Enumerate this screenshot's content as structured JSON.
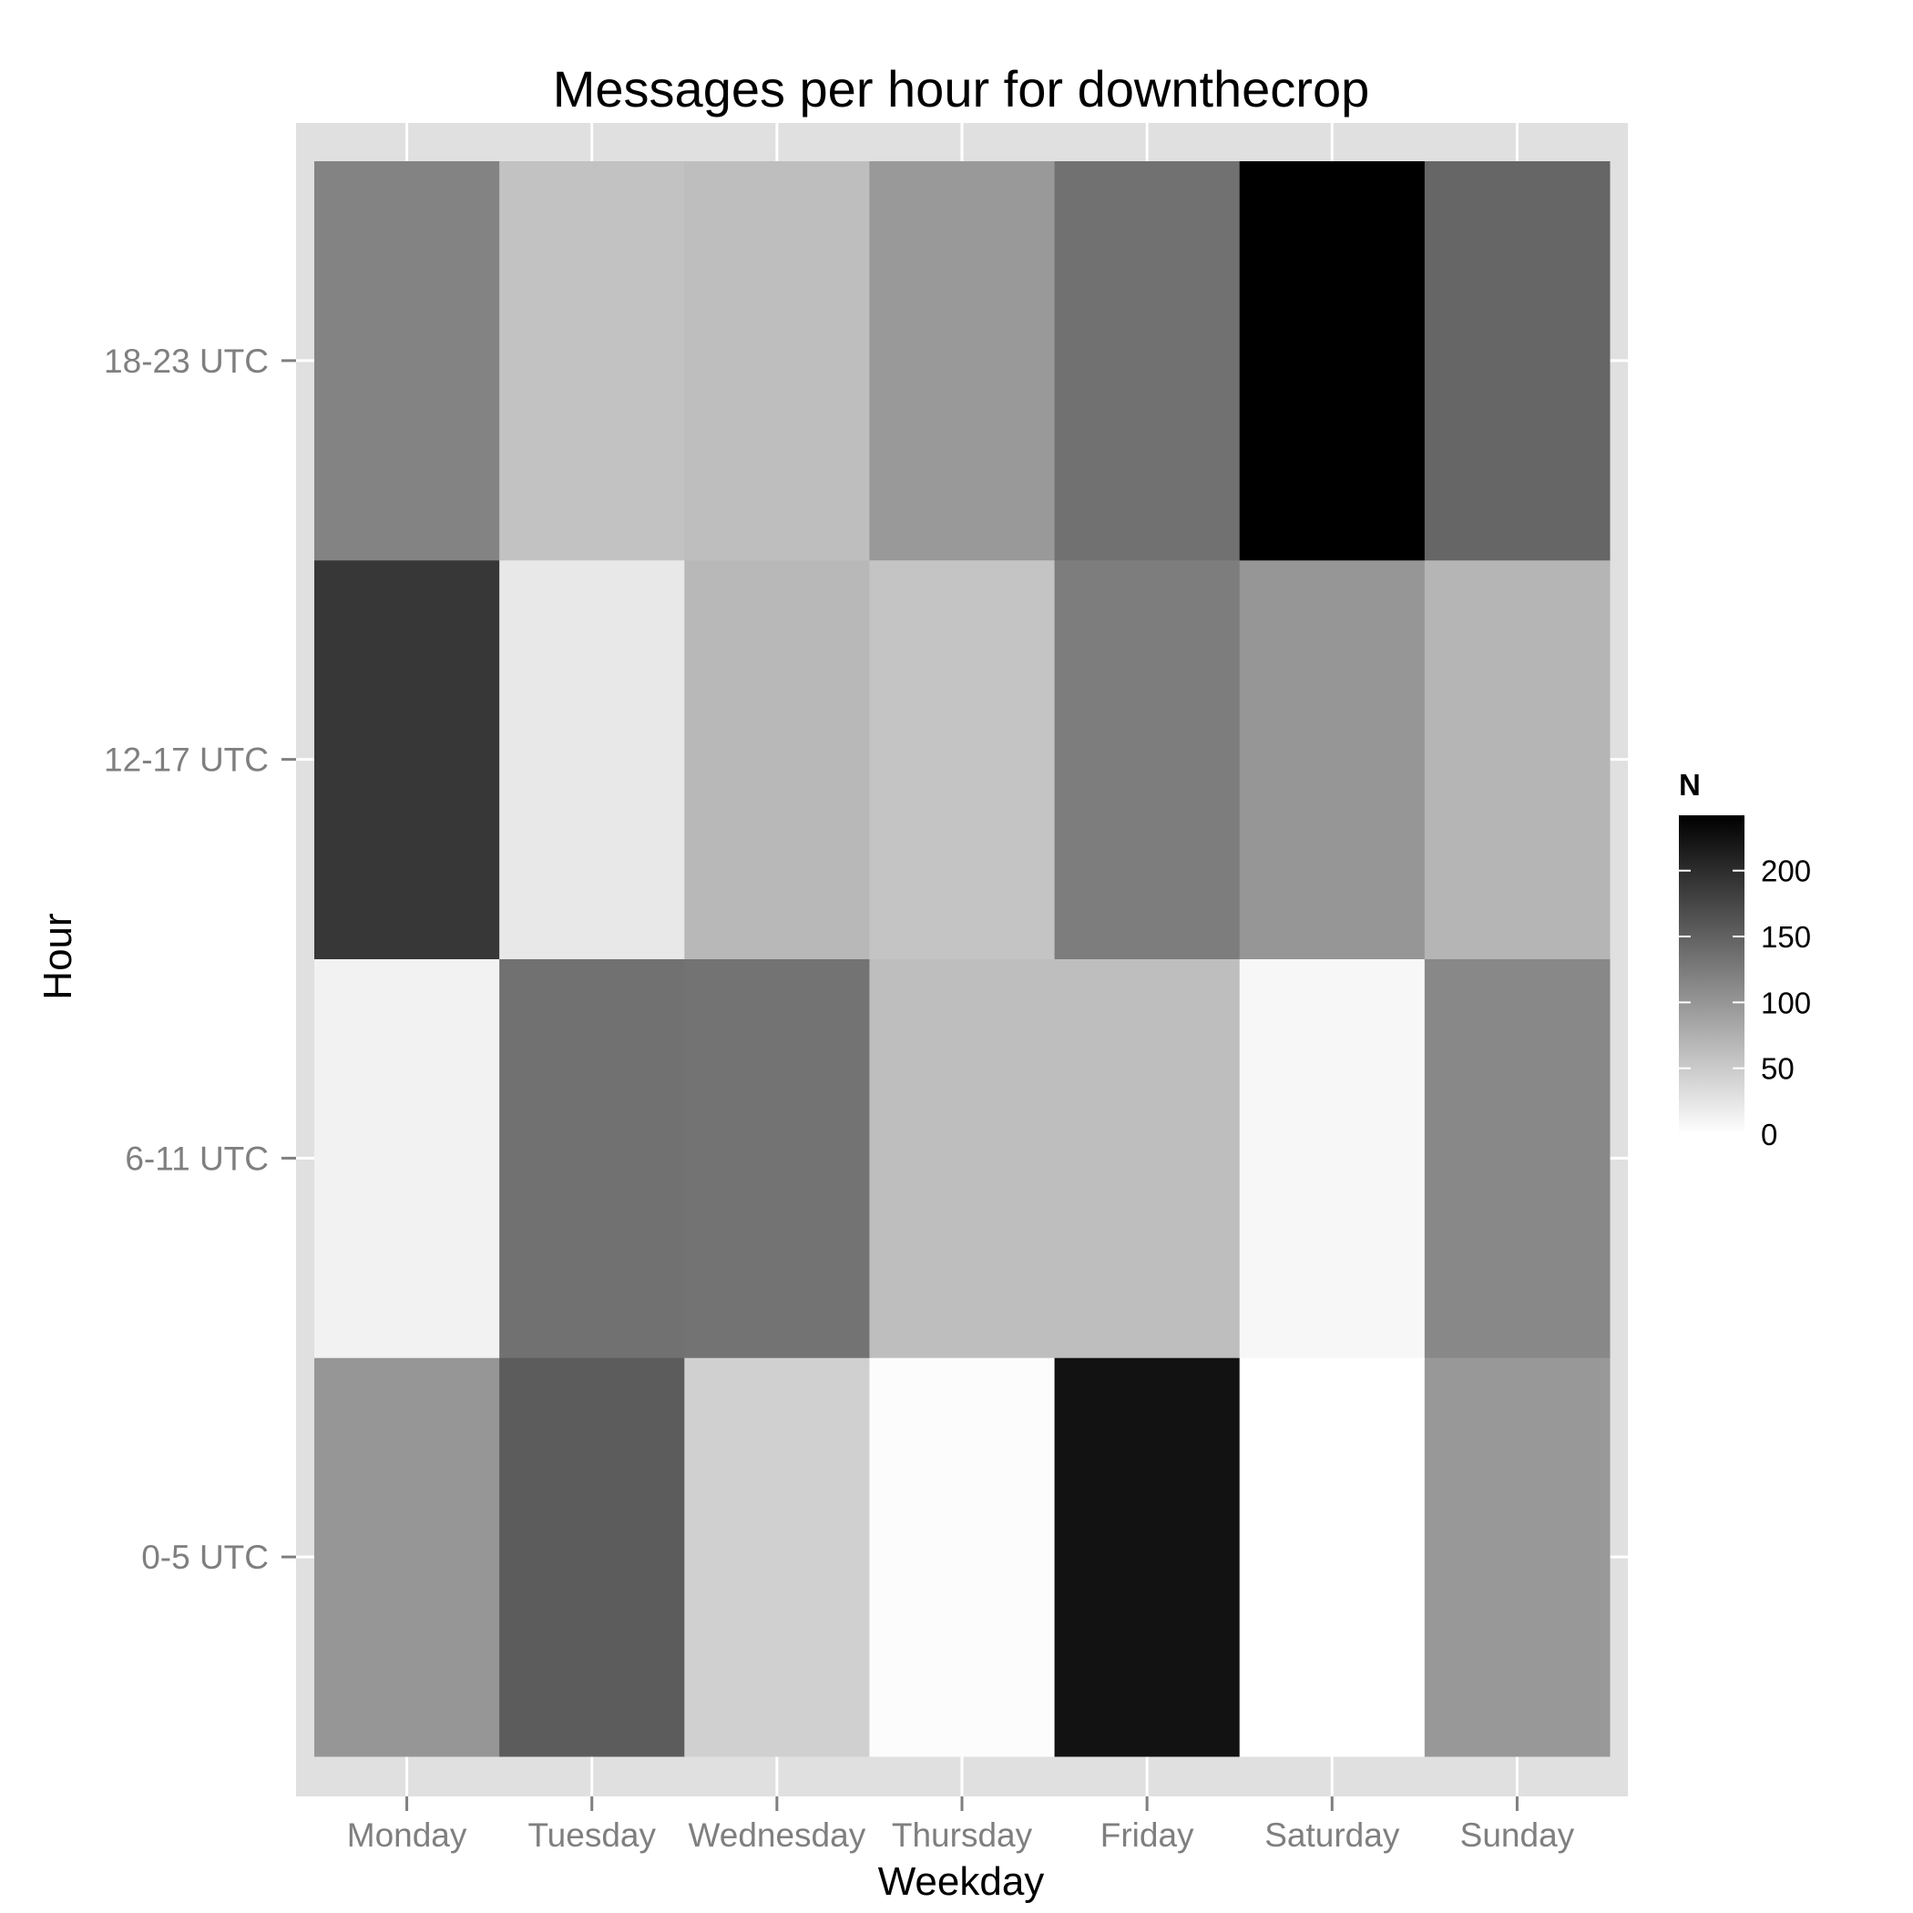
{
  "chart_data": {
    "type": "heatmap",
    "title": "Messages per hour for downthecrop",
    "xlabel": "Weekday",
    "ylabel": "Hour",
    "x_categories": [
      "Monday",
      "Tuesday",
      "Wednesday",
      "Thursday",
      "Friday",
      "Saturday",
      "Sunday"
    ],
    "y_categories": [
      "0-5 UTC",
      "6-11 UTC",
      "12-17 UTC",
      "18-23 UTC"
    ],
    "values": [
      [
        100,
        155,
        45,
        3,
        225,
        0,
        98
      ],
      [
        12,
        135,
        133,
        62,
        62,
        8,
        113
      ],
      [
        190,
        22,
        67,
        56,
        123,
        100,
        70
      ],
      [
        118,
        58,
        62,
        97,
        135,
        242,
        145
      ]
    ],
    "color_scale": {
      "title": "N",
      "min": 0,
      "max": 242,
      "low_color": "#ffffff",
      "high_color": "#000000",
      "breaks": [
        0,
        50,
        100,
        150,
        200
      ],
      "break_labels": [
        "0",
        "50",
        "100",
        "150",
        "200"
      ]
    },
    "panel_background": "#e0e0e0",
    "grid_color": "#ffffff",
    "grid": true,
    "legend_position": "right"
  }
}
